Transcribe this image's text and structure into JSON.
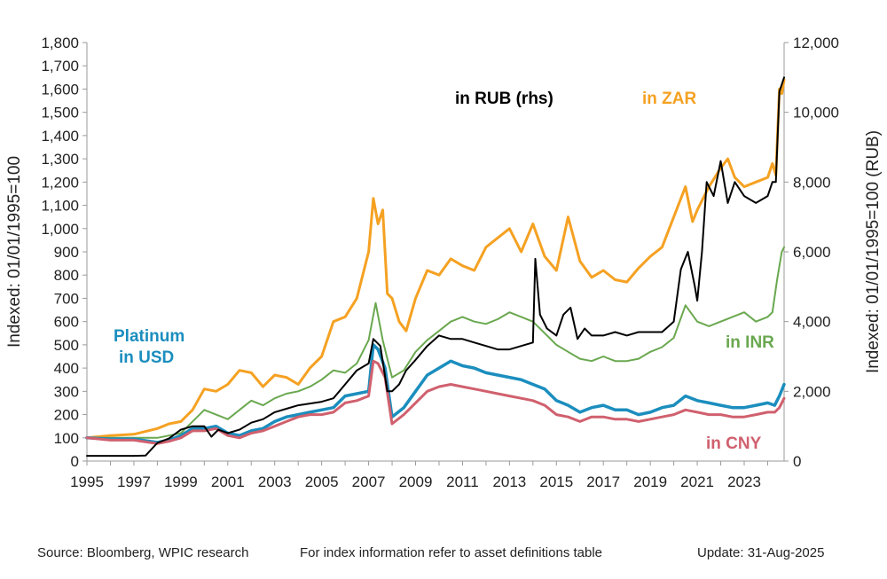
{
  "chart_data": {
    "type": "line",
    "title": "",
    "xlabel": "",
    "ylabel": "Indexed: 01/01/1995=100",
    "y2label": "Indexed: 01/01/1995=100 (RUB)",
    "xlim": [
      1995,
      2024.7
    ],
    "ylim": [
      0,
      1800
    ],
    "y2lim": [
      0,
      12000
    ],
    "x_ticks": [
      1995,
      1997,
      1999,
      2001,
      2003,
      2005,
      2007,
      2009,
      2011,
      2013,
      2015,
      2017,
      2019,
      2021,
      2023
    ],
    "x_tick_labels": [
      "1995",
      "1997",
      "1999",
      "2001",
      "2003",
      "2005",
      "2007",
      "2009",
      "2011",
      "2013",
      "2015",
      "2017",
      "2019",
      "2021",
      "2023"
    ],
    "y_ticks": [
      0,
      100,
      200,
      300,
      400,
      500,
      600,
      700,
      800,
      900,
      1000,
      1100,
      1200,
      1300,
      1400,
      1500,
      1600,
      1700,
      1800
    ],
    "y_tick_labels": [
      "0",
      "100",
      "200",
      "300",
      "400",
      "500",
      "600",
      "700",
      "800",
      "900",
      "1,000",
      "1,100",
      "1,200",
      "1,300",
      "1,400",
      "1,500",
      "1,600",
      "1,700",
      "1,800"
    ],
    "y2_ticks": [
      0,
      2000,
      4000,
      6000,
      8000,
      10000,
      12000
    ],
    "y2_tick_labels": [
      "0",
      "2,000",
      "4,000",
      "6,000",
      "8,000",
      "10,000",
      "12,000"
    ],
    "grid": false,
    "series": [
      {
        "name": "in ZAR",
        "label": "in ZAR",
        "color": "#F5A122",
        "width": 3,
        "axis": "left",
        "x": [
          1995,
          1996,
          1997,
          1998,
          1998.5,
          1999,
          1999.5,
          2000,
          2000.5,
          2001,
          2001.5,
          2002,
          2002.5,
          2003,
          2003.5,
          2004,
          2004.5,
          2005,
          2005.5,
          2006,
          2006.5,
          2007,
          2007.2,
          2007.4,
          2007.6,
          2007.8,
          2008,
          2008.3,
          2008.6,
          2009,
          2009.5,
          2010,
          2010.5,
          2011,
          2011.5,
          2012,
          2012.5,
          2013,
          2013.5,
          2014,
          2014.5,
          2015,
          2015.5,
          2016,
          2016.5,
          2017,
          2017.5,
          2018,
          2018.5,
          2019,
          2019.5,
          2020,
          2020.5,
          2020.8,
          2021,
          2021.5,
          2022,
          2022.3,
          2022.6,
          2023,
          2023.5,
          2024,
          2024.2,
          2024.35,
          2024.5,
          2024.6,
          2024.7
        ],
        "y": [
          100,
          110,
          115,
          140,
          160,
          170,
          220,
          310,
          300,
          330,
          390,
          380,
          320,
          370,
          360,
          330,
          400,
          450,
          600,
          620,
          700,
          900,
          1130,
          1020,
          1080,
          720,
          700,
          600,
          560,
          700,
          820,
          800,
          870,
          840,
          820,
          920,
          960,
          1000,
          900,
          1020,
          880,
          820,
          1050,
          860,
          790,
          820,
          780,
          770,
          830,
          880,
          920,
          1050,
          1180,
          1030,
          1080,
          1180,
          1260,
          1300,
          1220,
          1180,
          1200,
          1220,
          1280,
          1230,
          1600,
          1580,
          1640
        ]
      },
      {
        "name": "in INR",
        "label": "in INR",
        "color": "#6AA84F",
        "width": 2,
        "axis": "left",
        "x": [
          1995,
          1996,
          1997,
          1998,
          1998.5,
          1999,
          1999.5,
          2000,
          2000.5,
          2001,
          2001.5,
          2002,
          2002.5,
          2003,
          2003.5,
          2004,
          2004.5,
          2005,
          2005.5,
          2006,
          2006.5,
          2007,
          2007.3,
          2007.6,
          2007.8,
          2008,
          2008.5,
          2009,
          2009.5,
          2010,
          2010.5,
          2011,
          2011.5,
          2012,
          2012.5,
          2013,
          2013.5,
          2014,
          2014.5,
          2015,
          2015.5,
          2016,
          2016.5,
          2017,
          2017.5,
          2018,
          2018.5,
          2019,
          2019.5,
          2020,
          2020.5,
          2021,
          2021.5,
          2022,
          2022.5,
          2023,
          2023.5,
          2024,
          2024.2,
          2024.4,
          2024.6,
          2024.7
        ],
        "y": [
          100,
          100,
          100,
          100,
          110,
          120,
          170,
          220,
          200,
          180,
          220,
          260,
          240,
          270,
          290,
          300,
          320,
          350,
          390,
          380,
          420,
          520,
          680,
          520,
          440,
          360,
          390,
          470,
          520,
          560,
          600,
          620,
          600,
          590,
          610,
          640,
          620,
          600,
          550,
          500,
          470,
          440,
          430,
          450,
          430,
          430,
          440,
          470,
          490,
          530,
          670,
          600,
          580,
          600,
          620,
          640,
          600,
          620,
          640,
          780,
          900,
          920
        ]
      },
      {
        "name": "Platinum in USD",
        "label": "Platinum\nin USD",
        "color": "#1B8EBE",
        "width": 3.5,
        "axis": "left",
        "x": [
          1995,
          1996,
          1997,
          1998,
          1998.5,
          1999,
          1999.5,
          2000,
          2000.5,
          2001,
          2001.5,
          2002,
          2002.5,
          2003,
          2003.5,
          2004,
          2004.5,
          2005,
          2005.5,
          2006,
          2006.5,
          2007,
          2007.2,
          2007.4,
          2007.7,
          2008,
          2008.5,
          2009,
          2009.5,
          2010,
          2010.5,
          2011,
          2011.5,
          2012,
          2012.5,
          2013,
          2013.5,
          2014,
          2014.5,
          2015,
          2015.5,
          2016,
          2016.5,
          2017,
          2017.5,
          2018,
          2018.5,
          2019,
          2019.5,
          2020,
          2020.5,
          2021,
          2021.5,
          2022,
          2022.5,
          2023,
          2023.5,
          2024,
          2024.3,
          2024.5,
          2024.7
        ],
        "y": [
          100,
          95,
          95,
          80,
          90,
          110,
          140,
          140,
          150,
          120,
          110,
          130,
          140,
          170,
          190,
          200,
          210,
          220,
          230,
          280,
          290,
          300,
          500,
          480,
          400,
          190,
          230,
          300,
          370,
          400,
          430,
          410,
          400,
          380,
          370,
          360,
          350,
          330,
          310,
          260,
          240,
          210,
          230,
          240,
          220,
          220,
          200,
          210,
          230,
          240,
          280,
          260,
          250,
          240,
          230,
          230,
          240,
          250,
          240,
          280,
          330
        ]
      },
      {
        "name": "in CNY",
        "label": "in CNY",
        "color": "#D0606E",
        "width": 3,
        "axis": "left",
        "x": [
          1995,
          1996,
          1997,
          1998,
          1998.5,
          1999,
          1999.5,
          2000,
          2000.5,
          2001,
          2001.5,
          2002,
          2002.5,
          2003,
          2003.5,
          2004,
          2004.5,
          2005,
          2005.5,
          2006,
          2006.5,
          2007,
          2007.2,
          2007.4,
          2007.7,
          2008,
          2008.5,
          2009,
          2009.5,
          2010,
          2010.5,
          2011,
          2011.5,
          2012,
          2012.5,
          2013,
          2013.5,
          2014,
          2014.5,
          2015,
          2015.5,
          2016,
          2016.5,
          2017,
          2017.5,
          2018,
          2018.5,
          2019,
          2019.5,
          2020,
          2020.5,
          2021,
          2021.5,
          2022,
          2022.5,
          2023,
          2023.5,
          2024,
          2024.3,
          2024.5,
          2024.7
        ],
        "y": [
          100,
          90,
          90,
          75,
          85,
          100,
          130,
          130,
          140,
          110,
          100,
          120,
          130,
          150,
          170,
          190,
          200,
          200,
          210,
          250,
          260,
          280,
          430,
          420,
          360,
          160,
          200,
          250,
          300,
          320,
          330,
          320,
          310,
          300,
          290,
          280,
          270,
          260,
          240,
          200,
          190,
          170,
          190,
          190,
          180,
          180,
          170,
          180,
          190,
          200,
          220,
          210,
          200,
          200,
          190,
          190,
          200,
          210,
          210,
          230,
          270
        ]
      },
      {
        "name": "in RUB (rhs)",
        "label": "in RUB (rhs)",
        "color": "#000000",
        "width": 2,
        "axis": "right",
        "x": [
          1995,
          1996,
          1997,
          1997.5,
          1998,
          1998.5,
          1999,
          1999.5,
          2000,
          2000.3,
          2000.6,
          2001,
          2001.5,
          2002,
          2002.5,
          2003,
          2003.5,
          2004,
          2004.5,
          2005,
          2005.5,
          2006,
          2006.5,
          2007,
          2007.2,
          2007.5,
          2007.8,
          2008,
          2008.3,
          2008.6,
          2009,
          2009.5,
          2010,
          2010.5,
          2011,
          2011.5,
          2012,
          2012.5,
          2013,
          2013.5,
          2014,
          2014.1,
          2014.3,
          2014.6,
          2015,
          2015.3,
          2015.6,
          2015.9,
          2016.2,
          2016.5,
          2017,
          2017.5,
          2018,
          2018.5,
          2019,
          2019.5,
          2020,
          2020.3,
          2020.6,
          2020.9,
          2021,
          2021.2,
          2021.4,
          2021.7,
          2022,
          2022.3,
          2022.6,
          2023,
          2023.5,
          2024,
          2024.2,
          2024.35,
          2024.5,
          2024.6,
          2024.7
        ],
        "y": [
          150,
          150,
          150,
          160,
          520,
          650,
          900,
          1000,
          1000,
          700,
          900,
          800,
          900,
          1100,
          1200,
          1400,
          1500,
          1600,
          1650,
          1700,
          1800,
          2200,
          2600,
          2800,
          3500,
          3300,
          2000,
          2000,
          2200,
          2600,
          2900,
          3300,
          3600,
          3500,
          3500,
          3400,
          3300,
          3200,
          3200,
          3300,
          3400,
          5800,
          4200,
          3800,
          3600,
          4200,
          4400,
          3500,
          3800,
          3600,
          3600,
          3700,
          3600,
          3700,
          3700,
          3700,
          4000,
          5500,
          6000,
          5000,
          4600,
          6000,
          8000,
          7600,
          8600,
          7400,
          8000,
          7600,
          7400,
          7600,
          8000,
          8000,
          10600,
          10800,
          11000
        ]
      }
    ]
  },
  "footer": {
    "source": "Source: Bloomberg, WPIC research",
    "note": "For index information refer to asset definitions table",
    "update": "Update: 31-Aug-2025"
  }
}
